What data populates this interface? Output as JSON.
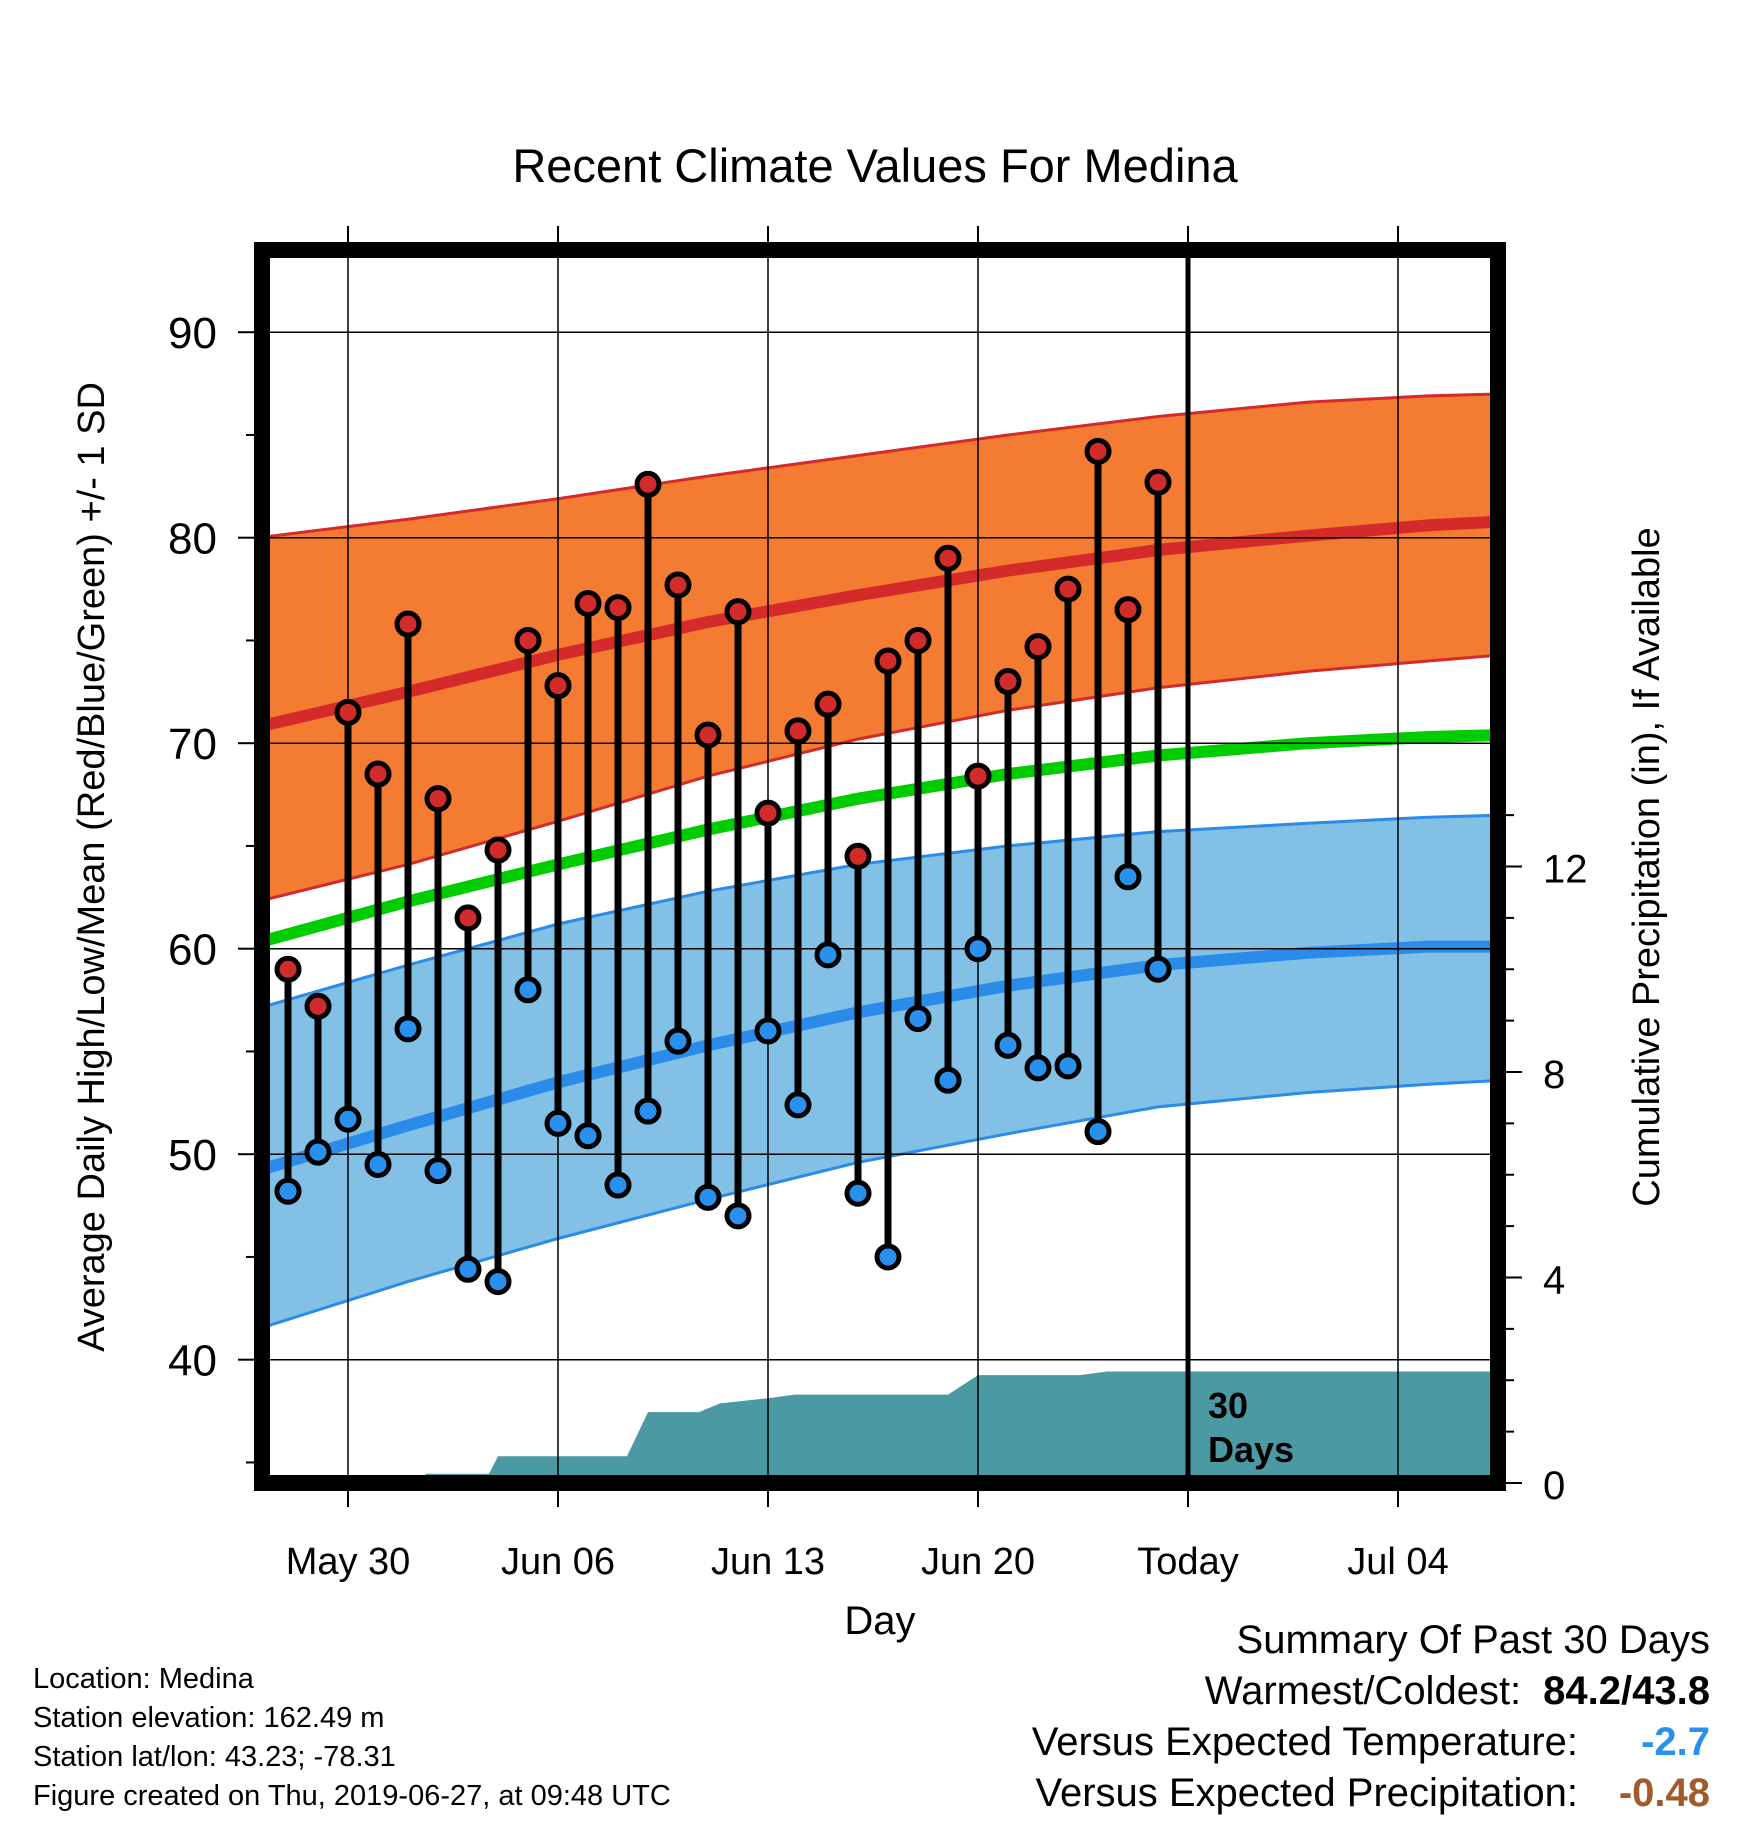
{
  "colors": {
    "high_band": "#f47b32",
    "high_band_edge": "#d42a2a",
    "high_mean": "#d42a2a",
    "low_band": "#82c0e6",
    "low_band_edge": "#2a8be8",
    "low_mean": "#2a8be8",
    "mean_line": "#00cc00",
    "precip_fill": "#4b9aa3",
    "high_point": "#d22b2b",
    "low_point": "#2a90ee",
    "temp_diff": "#2a90ee",
    "precip_diff": "#a05a2c"
  },
  "chart_data": {
    "type": "line",
    "title": "Recent Climate Values For Medina",
    "xlabel": "Day",
    "ylabel": "Average Daily High/Low/Mean (Red/Blue/Green) +/- 1 SD",
    "y2label": "Cumulative Precipitation (in), If Available",
    "x_tick_labels": [
      "May 30",
      "Jun 06",
      "Jun 13",
      "Jun 20",
      "Today",
      "Jul 04"
    ],
    "y_ticks": [
      40,
      50,
      60,
      70,
      80,
      90
    ],
    "y_tick_labels": [
      "40",
      "50",
      "60",
      "70",
      "80",
      "90"
    ],
    "ylim": [
      34,
      94
    ],
    "y2_ticks": [
      0,
      4,
      8,
      12
    ],
    "y2_tick_labels": [
      "0",
      "4",
      "8",
      "12"
    ],
    "y2lim": [
      0,
      24
    ],
    "x_dates": [
      "2019-05-27",
      "2019-07-06"
    ],
    "today": "2019-06-27",
    "today_label": "30 Days",
    "grid": true,
    "normal_high_mean": [
      [
        -3,
        70.8
      ],
      [
        2,
        72.5
      ],
      [
        7,
        74.3
      ],
      [
        12,
        75.9
      ],
      [
        17,
        77.2
      ],
      [
        22,
        78.4
      ],
      [
        27,
        79.4
      ],
      [
        32,
        80.1
      ],
      [
        36,
        80.6
      ],
      [
        38.5,
        80.8
      ]
    ],
    "normal_high_upper": [
      [
        -3,
        80.0
      ],
      [
        2,
        80.9
      ],
      [
        7,
        81.9
      ],
      [
        12,
        83.0
      ],
      [
        17,
        84.0
      ],
      [
        22,
        85.0
      ],
      [
        27,
        85.9
      ],
      [
        32,
        86.6
      ],
      [
        36,
        86.9
      ],
      [
        38.5,
        87.0
      ]
    ],
    "normal_high_lower": [
      [
        -3,
        62.3
      ],
      [
        2,
        64.1
      ],
      [
        7,
        66.2
      ],
      [
        12,
        68.4
      ],
      [
        17,
        70.2
      ],
      [
        22,
        71.6
      ],
      [
        27,
        72.7
      ],
      [
        32,
        73.5
      ],
      [
        36,
        74.0
      ],
      [
        38.5,
        74.3
      ]
    ],
    "normal_mean": [
      [
        -3,
        60.3
      ],
      [
        2,
        62.3
      ],
      [
        7,
        64.1
      ],
      [
        12,
        65.8
      ],
      [
        17,
        67.3
      ],
      [
        22,
        68.5
      ],
      [
        27,
        69.4
      ],
      [
        32,
        70.0
      ],
      [
        36,
        70.3
      ],
      [
        38.5,
        70.4
      ]
    ],
    "normal_low_mean": [
      [
        -3,
        49.2
      ],
      [
        2,
        51.4
      ],
      [
        7,
        53.5
      ],
      [
        12,
        55.3
      ],
      [
        17,
        56.9
      ],
      [
        22,
        58.2
      ],
      [
        27,
        59.2
      ],
      [
        32,
        59.8
      ],
      [
        36,
        60.1
      ],
      [
        38.5,
        60.1
      ]
    ],
    "normal_low_upper": [
      [
        -3,
        57.1
      ],
      [
        2,
        59.2
      ],
      [
        7,
        61.2
      ],
      [
        12,
        62.8
      ],
      [
        17,
        64.1
      ],
      [
        22,
        65.0
      ],
      [
        27,
        65.7
      ],
      [
        32,
        66.1
      ],
      [
        36,
        66.4
      ],
      [
        38.5,
        66.5
      ]
    ],
    "normal_low_lower": [
      [
        -3,
        41.5
      ],
      [
        2,
        43.8
      ],
      [
        7,
        45.9
      ],
      [
        12,
        47.8
      ],
      [
        17,
        49.6
      ],
      [
        22,
        51.0
      ],
      [
        27,
        52.3
      ],
      [
        32,
        53.0
      ],
      [
        36,
        53.4
      ],
      [
        38.5,
        53.6
      ]
    ],
    "daily": [
      {
        "day": -2,
        "high": 59.0,
        "low": 48.2
      },
      {
        "day": -1,
        "high": 57.2,
        "low": 50.1
      },
      {
        "day": 0,
        "high": 71.5,
        "low": 51.7
      },
      {
        "day": 1,
        "high": 68.5,
        "low": 49.5
      },
      {
        "day": 2,
        "high": 75.8,
        "low": 56.1
      },
      {
        "day": 3,
        "high": 67.3,
        "low": 49.2
      },
      {
        "day": 4,
        "high": 61.5,
        "low": 44.4
      },
      {
        "day": 5,
        "high": 64.8,
        "low": 43.8
      },
      {
        "day": 6,
        "high": 75.0,
        "low": 58.0
      },
      {
        "day": 7,
        "high": 72.8,
        "low": 51.5
      },
      {
        "day": 8,
        "high": 76.8,
        "low": 50.9
      },
      {
        "day": 9,
        "high": 76.6,
        "low": 48.5
      },
      {
        "day": 10,
        "high": 82.6,
        "low": 52.1
      },
      {
        "day": 11,
        "high": 77.7,
        "low": 55.5
      },
      {
        "day": 12,
        "high": 70.4,
        "low": 47.9
      },
      {
        "day": 13,
        "high": 76.4,
        "low": 47.0
      },
      {
        "day": 14,
        "high": 66.6,
        "low": 56.0
      },
      {
        "day": 15,
        "high": 70.6,
        "low": 52.4
      },
      {
        "day": 16,
        "high": 71.9,
        "low": 59.7
      },
      {
        "day": 17,
        "high": 64.5,
        "low": 48.1
      },
      {
        "day": 18,
        "high": 74.0,
        "low": 45.0
      },
      {
        "day": 19,
        "high": 75.0,
        "low": 56.6
      },
      {
        "day": 20,
        "high": 79.0,
        "low": 53.6
      },
      {
        "day": 21,
        "high": 68.4,
        "low": 60.0
      },
      {
        "day": 22,
        "high": 73.0,
        "low": 55.3
      },
      {
        "day": 23,
        "high": 74.7,
        "low": 54.2
      },
      {
        "day": 24,
        "high": 77.5,
        "low": 54.3
      },
      {
        "day": 25,
        "high": 84.2,
        "low": 51.1
      },
      {
        "day": 26,
        "high": 76.5,
        "low": 63.5
      },
      {
        "day": 27,
        "high": 82.7,
        "low": 59.0
      }
    ],
    "cumulative_precip": [
      [
        -3,
        0.0
      ],
      [
        2.4,
        0.0
      ],
      [
        2.6,
        0.18
      ],
      [
        4.7,
        0.18
      ],
      [
        5.0,
        0.52
      ],
      [
        9.3,
        0.52
      ],
      [
        10.0,
        1.38
      ],
      [
        11.7,
        1.38
      ],
      [
        12.4,
        1.55
      ],
      [
        14.0,
        1.65
      ],
      [
        14.9,
        1.72
      ],
      [
        18.2,
        1.72
      ],
      [
        20.0,
        1.72
      ],
      [
        21.0,
        2.1
      ],
      [
        24.4,
        2.1
      ],
      [
        25.3,
        2.17
      ],
      [
        38.5,
        2.17
      ]
    ]
  },
  "footer": {
    "location": "Location: Medina",
    "elevation": "Station elevation: 162.49 m",
    "latlon": "Station lat/lon: 43.23; -78.31",
    "created": "Figure created on Thu, 2019-06-27, at 09:48 UTC"
  },
  "summary": {
    "heading": "Summary Of Past 30 Days",
    "warmest_coldest_label": "Warmest/Coldest:",
    "warmest_coldest_value": "84.2/43.8",
    "temp_label": "Versus Expected Temperature:",
    "temp_value": "-2.7",
    "precip_label": "Versus Expected Precipitation:",
    "precip_value": "-0.48"
  }
}
